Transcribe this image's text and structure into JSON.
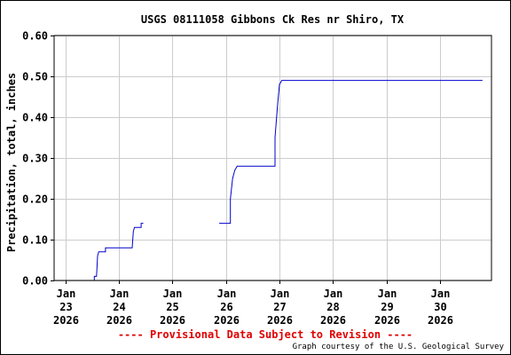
{
  "chart_data": {
    "type": "line",
    "title": "USGS 08111058 Gibbons Ck Res nr Shiro, TX",
    "xlabel": "",
    "ylabel": "Precipitation, total, inches",
    "ylim": [
      0,
      0.6
    ],
    "xlim": [
      "2026-01-22 19:00",
      "2026-01-30 23:00"
    ],
    "y_ticks": [
      "0.00",
      "0.10",
      "0.20",
      "0.30",
      "0.40",
      "0.50",
      "0.60"
    ],
    "x_ticks": [
      {
        "month": "Jan",
        "day": "23",
        "year": "2026",
        "t": "2026-01-23 00:00"
      },
      {
        "month": "Jan",
        "day": "24",
        "year": "2026",
        "t": "2026-01-24 00:00"
      },
      {
        "month": "Jan",
        "day": "25",
        "year": "2026",
        "t": "2026-01-25 00:00"
      },
      {
        "month": "Jan",
        "day": "26",
        "year": "2026",
        "t": "2026-01-26 00:00"
      },
      {
        "month": "Jan",
        "day": "27",
        "year": "2026",
        "t": "2026-01-27 00:00"
      },
      {
        "month": "Jan",
        "day": "28",
        "year": "2026",
        "t": "2026-01-28 00:00"
      },
      {
        "month": "Jan",
        "day": "29",
        "year": "2026",
        "t": "2026-01-29 00:00"
      },
      {
        "month": "Jan",
        "day": "30",
        "year": "2026",
        "t": "2026-01-30 00:00"
      }
    ],
    "grid": true,
    "series": [
      {
        "color": "#0000cc",
        "segments": [
          [
            [
              "2026-01-22 19:00",
              0.0
            ],
            [
              "2026-01-23 13:00",
              0.0
            ],
            [
              "2026-01-23 13:00",
              0.01
            ],
            [
              "2026-01-23 14:00",
              0.01
            ],
            [
              "2026-01-23 14:30",
              0.06
            ],
            [
              "2026-01-23 15:00",
              0.07
            ],
            [
              "2026-01-23 18:00",
              0.07
            ],
            [
              "2026-01-23 18:00",
              0.08
            ],
            [
              "2026-01-24 06:00",
              0.08
            ],
            [
              "2026-01-24 06:30",
              0.12
            ],
            [
              "2026-01-24 07:00",
              0.13
            ],
            [
              "2026-01-24 10:00",
              0.13
            ],
            [
              "2026-01-24 10:00",
              0.14
            ],
            [
              "2026-01-24 11:00",
              0.14
            ]
          ],
          [
            [
              "2026-01-25 21:00",
              0.14
            ],
            [
              "2026-01-26 02:00",
              0.14
            ],
            [
              "2026-01-26 02:00",
              0.2
            ],
            [
              "2026-01-26 03:00",
              0.25
            ],
            [
              "2026-01-26 04:00",
              0.27
            ],
            [
              "2026-01-26 05:00",
              0.28
            ],
            [
              "2026-01-26 22:00",
              0.28
            ],
            [
              "2026-01-26 22:00",
              0.35
            ],
            [
              "2026-01-26 23:00",
              0.42
            ],
            [
              "2026-01-27 00:00",
              0.48
            ],
            [
              "2026-01-27 01:00",
              0.49
            ],
            [
              "2026-01-30 19:00",
              0.49
            ]
          ]
        ]
      }
    ]
  },
  "footer": {
    "provisional": "---- Provisional Data Subject to Revision ----",
    "credit": "Graph courtesy of the U.S. Geological Survey"
  }
}
